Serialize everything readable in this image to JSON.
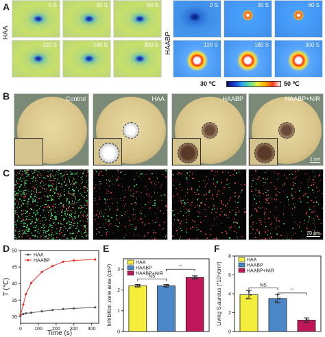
{
  "panel_labels": {
    "a": "A",
    "b": "B",
    "c": "C",
    "d": "D",
    "e": "E",
    "f": "F"
  },
  "panel_a": {
    "haa_label": "HAA",
    "haabp_label": "HAABP",
    "haa_times": [
      "0 S",
      "30 S",
      "60 S",
      "120 S",
      "180 S",
      "300 S"
    ],
    "haabp_times": [
      "0 S",
      "30 S",
      "60 S",
      "120 S",
      "180 S",
      "300 S"
    ],
    "colorbar_min": "30 ℃",
    "colorbar_max": "50 ℃"
  },
  "panel_b": {
    "titles": [
      "Control",
      "HAA",
      "HAABP",
      "HAABP+NIR"
    ],
    "scale": "1 cm"
  },
  "panel_c": {
    "scale": "20 μm"
  },
  "colors": {
    "haa": "#555555",
    "haabp": "#e8342a",
    "yellow": "#f4ee3a",
    "blue": "#4a86c8",
    "magenta": "#c0175a"
  },
  "chart_data": [
    {
      "type": "line",
      "ylabel": "T (℃)",
      "xlabel": "Time (s)",
      "xlim": [
        0,
        440
      ],
      "ylim": [
        28,
        50
      ],
      "xticks": [
        0,
        100,
        200,
        300,
        400
      ],
      "yticks": [
        30,
        35,
        40,
        45,
        50
      ],
      "series": [
        {
          "name": "HAA",
          "x": [
            0,
            15,
            30,
            60,
            120,
            180,
            240,
            300,
            420
          ],
          "y": [
            30.4,
            30.8,
            31.0,
            31.2,
            31.6,
            32.0,
            32.3,
            32.5,
            32.8
          ]
        },
        {
          "name": "HAABP",
          "x": [
            0,
            15,
            30,
            60,
            120,
            180,
            240,
            300,
            420
          ],
          "y": [
            30.6,
            33.6,
            36.8,
            40.2,
            43.5,
            45.3,
            46.6,
            47.0,
            47.3
          ]
        }
      ]
    },
    {
      "type": "bar",
      "ylabel": "Inhibition zone area (cm²)",
      "ylim": [
        0,
        3.5
      ],
      "yticks": [
        0,
        1,
        2,
        3
      ],
      "series": [
        {
          "name": "HAA",
          "value": 2.2
        },
        {
          "name": "HAABP",
          "value": 2.2
        },
        {
          "name": "HAABP+NIR",
          "value": 2.6
        }
      ],
      "annotations": [
        "NS",
        "**"
      ]
    },
    {
      "type": "bar",
      "ylabel": "Living S.aureus (*10⁵/cm²)",
      "ylim": [
        0,
        8
      ],
      "yticks": [
        0,
        2,
        4,
        6,
        8
      ],
      "series": [
        {
          "name": "HAA",
          "value": 3.9
        },
        {
          "name": "HAABP",
          "value": 3.5
        },
        {
          "name": "HAABP+NIR",
          "value": 1.2
        }
      ],
      "annotations": [
        "NS",
        "**"
      ]
    }
  ]
}
